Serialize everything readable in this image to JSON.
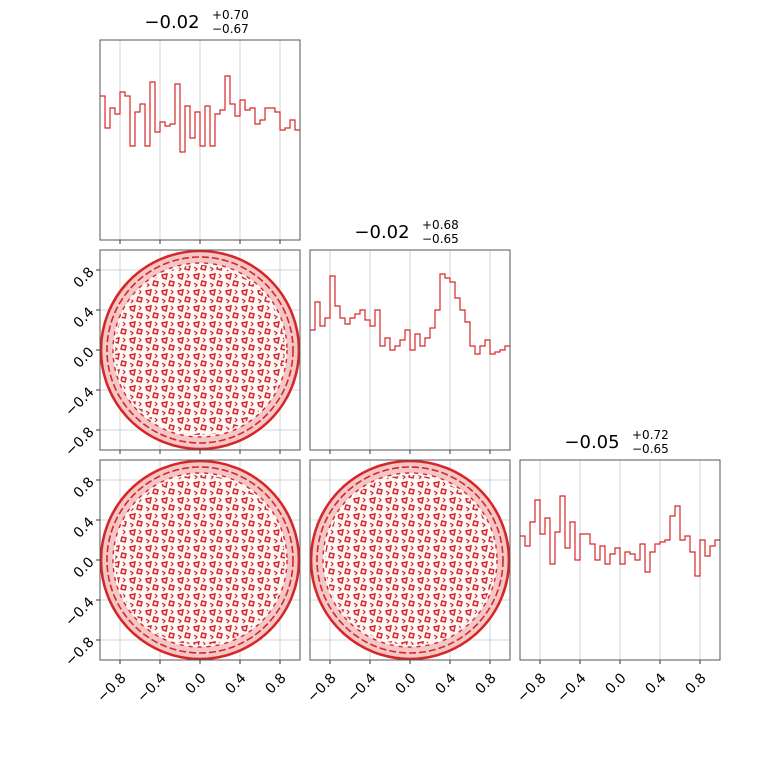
{
  "chart_data": {
    "type": "corner",
    "n_params": 3,
    "range": [
      -1,
      1
    ],
    "ticks": [
      -0.8,
      -0.4,
      0.0,
      0.4,
      0.8
    ],
    "tick_labels": [
      "−0.8",
      "−0.4",
      "0.0",
      "0.4",
      "0.8"
    ],
    "grid": true,
    "color": "#d62728",
    "fill_color": "#f4c6c6",
    "titles": [
      {
        "median": "−0.02",
        "plus": "+0.70",
        "minus": "−0.67"
      },
      {
        "median": "−0.02",
        "plus": "+0.68",
        "minus": "−0.65"
      },
      {
        "median": "−0.05",
        "plus": "+0.72",
        "minus": "−0.65"
      }
    ],
    "histograms": [
      [
        0.72,
        0.56,
        0.66,
        0.63,
        0.74,
        0.72,
        0.47,
        0.64,
        0.68,
        0.47,
        0.79,
        0.54,
        0.59,
        0.57,
        0.58,
        0.78,
        0.44,
        0.67,
        0.51,
        0.64,
        0.47,
        0.67,
        0.47,
        0.63,
        0.65,
        0.82,
        0.68,
        0.62,
        0.7,
        0.65,
        0.66,
        0.58,
        0.6,
        0.66,
        0.66,
        0.64,
        0.55,
        0.56,
        0.6,
        0.55
      ],
      [
        0.6,
        0.74,
        0.62,
        0.66,
        0.87,
        0.72,
        0.66,
        0.63,
        0.66,
        0.68,
        0.7,
        0.65,
        0.62,
        0.7,
        0.52,
        0.56,
        0.5,
        0.52,
        0.55,
        0.6,
        0.5,
        0.58,
        0.52,
        0.56,
        0.61,
        0.7,
        0.88,
        0.86,
        0.84,
        0.76,
        0.7,
        0.64,
        0.52,
        0.48,
        0.52,
        0.55,
        0.48,
        0.49,
        0.5,
        0.52
      ],
      [
        0.62,
        0.57,
        0.69,
        0.8,
        0.63,
        0.71,
        0.48,
        0.64,
        0.82,
        0.56,
        0.69,
        0.5,
        0.63,
        0.63,
        0.58,
        0.5,
        0.57,
        0.48,
        0.53,
        0.56,
        0.48,
        0.54,
        0.53,
        0.5,
        0.58,
        0.44,
        0.54,
        0.58,
        0.59,
        0.6,
        0.72,
        0.77,
        0.6,
        0.62,
        0.54,
        0.42,
        0.6,
        0.52,
        0.57,
        0.6
      ]
    ]
  }
}
